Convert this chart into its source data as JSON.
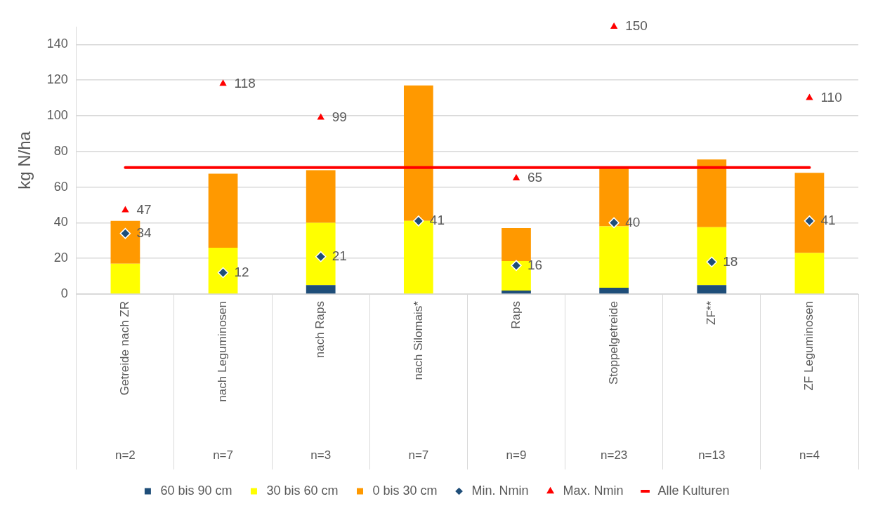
{
  "chart_data": {
    "type": "bar",
    "ylabel": "kg N/ha",
    "stacked": true,
    "grid": "y",
    "legend": "bottom",
    "categories": [
      "Getreide nach ZR",
      "nach Leguminosen",
      "nach Raps",
      "nach Silomais*",
      "Raps",
      "Stoppelgetreide",
      "ZF**",
      "ZF Leguminosen"
    ],
    "ylim": [
      0,
      150
    ],
    "yticks": [
      0,
      20,
      40,
      60,
      80,
      100,
      120,
      140
    ],
    "series": [
      {
        "name": "60 bis 90 cm",
        "color": "#1f4e79",
        "values": [
          0,
          0,
          5,
          0,
          2,
          3.5,
          5,
          0
        ]
      },
      {
        "name": "30 bis 60 cm",
        "color": "#ffff00",
        "values": [
          17,
          26,
          35,
          41,
          16.5,
          34.5,
          32.5,
          23
        ]
      },
      {
        "name": "0 bis 30 cm",
        "color": "#ff9900",
        "values": [
          24,
          41.5,
          29.5,
          76,
          18.5,
          33,
          38,
          45
        ]
      },
      {
        "name": "Min. Nmin",
        "type": "scatter",
        "marker": "diamond",
        "color": "#1f4e79",
        "values": [
          34,
          12,
          21,
          41,
          16,
          40,
          18,
          41
        ],
        "value_labels": [
          "34",
          "12",
          "21",
          "41",
          "16",
          "40",
          "18",
          "41"
        ]
      },
      {
        "name": "Max. Nmin",
        "type": "scatter",
        "marker": "triangle",
        "color": "#ff0000",
        "values": [
          47,
          118,
          99,
          null,
          65,
          150,
          null,
          110
        ],
        "value_labels": [
          "47",
          "118",
          "99",
          null,
          "65",
          "150",
          null,
          "110"
        ]
      },
      {
        "name": "Alle Kulturen",
        "type": "line",
        "marker": "none",
        "color": "#ff0000",
        "values": [
          71,
          71,
          71,
          71,
          71,
          71,
          71,
          71
        ]
      }
    ],
    "annotations": [
      "n=2",
      "n=7",
      "n=3",
      "n=7",
      "n=9",
      "n=23",
      "n=13",
      "n=4"
    ]
  }
}
